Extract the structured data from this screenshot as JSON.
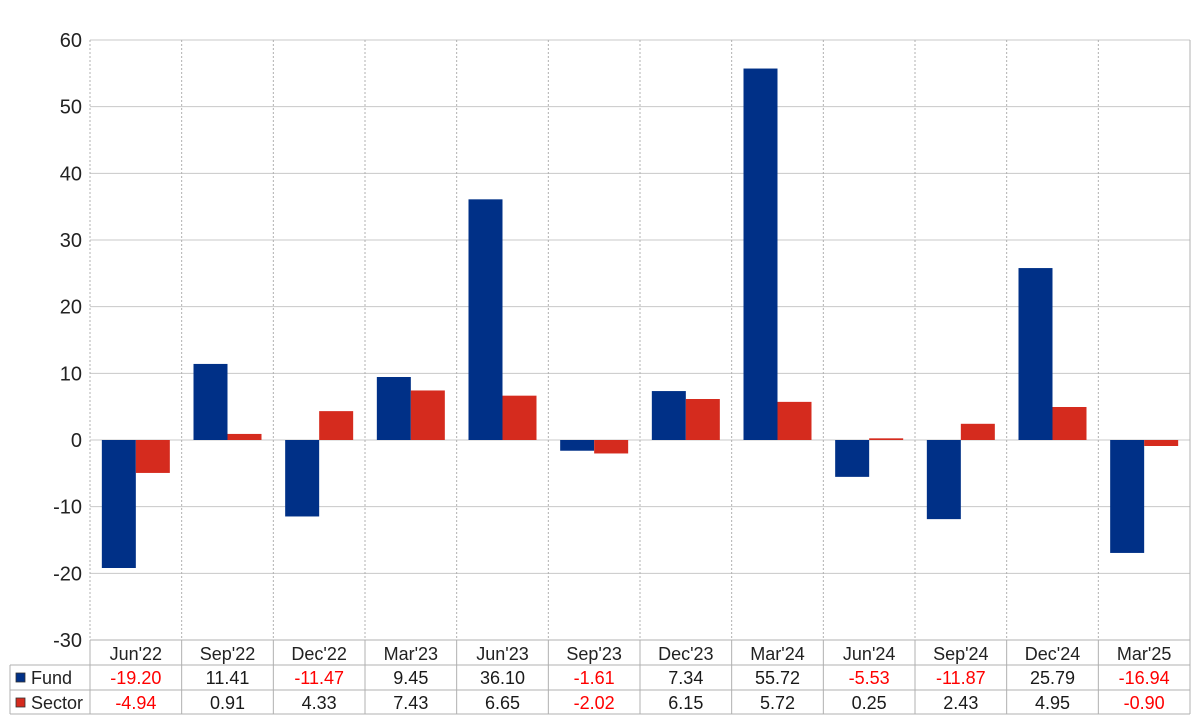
{
  "chart_data": {
    "type": "bar",
    "categories": [
      "Jun'22",
      "Sep'22",
      "Dec'22",
      "Mar'23",
      "Jun'23",
      "Sep'23",
      "Dec'23",
      "Mar'24",
      "Jun'24",
      "Sep'24",
      "Dec'24",
      "Mar'25"
    ],
    "series": [
      {
        "name": "Fund",
        "color": "#003087",
        "values": [
          -19.2,
          11.41,
          -11.47,
          9.45,
          36.1,
          -1.61,
          7.34,
          55.72,
          -5.53,
          -11.87,
          25.79,
          -16.94
        ],
        "labels": [
          "-19.20",
          "11.41",
          "-11.47",
          "9.45",
          "36.10",
          "-1.61",
          "7.34",
          "55.72",
          "-5.53",
          "-11.87",
          "25.79",
          "-16.94"
        ]
      },
      {
        "name": "Sector",
        "color": "#d52b1e",
        "values": [
          -4.94,
          0.91,
          4.33,
          7.43,
          6.65,
          -2.02,
          6.15,
          5.72,
          0.25,
          2.43,
          4.95,
          -0.9
        ],
        "labels": [
          "-4.94",
          "0.91",
          "4.33",
          "7.43",
          "6.65",
          "-2.02",
          "6.15",
          "5.72",
          "0.25",
          "2.43",
          "4.95",
          "-0.90"
        ]
      }
    ],
    "ylim": [
      -30,
      60
    ],
    "yticks": [
      "60",
      "50",
      "40",
      "30",
      "20",
      "10",
      "0",
      "-10",
      "-20",
      "-30"
    ],
    "grid": true,
    "legend": "table-below",
    "negative_color": "#ff0000",
    "positive_color": "#1a1a1a"
  }
}
